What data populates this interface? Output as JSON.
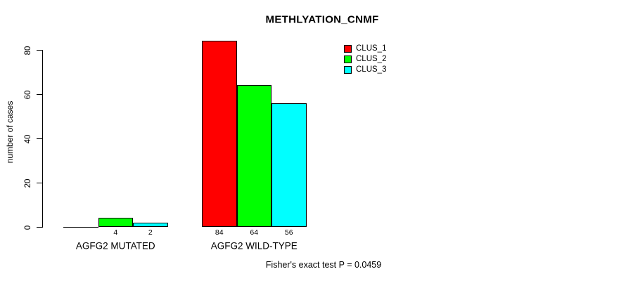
{
  "chart_data": {
    "type": "bar",
    "title": "METHLYATION_CNMF",
    "ylabel": "number of cases",
    "xlabel": "",
    "categories": [
      "AGFG2 MUTATED",
      "AGFG2 WILD-TYPE"
    ],
    "series": [
      {
        "name": "CLUS_1",
        "color": "#ff0000",
        "values": [
          0,
          84
        ]
      },
      {
        "name": "CLUS_2",
        "color": "#00ff00",
        "values": [
          4,
          64
        ]
      },
      {
        "name": "CLUS_3",
        "color": "#00ffff",
        "values": [
          2,
          56
        ]
      }
    ],
    "bar_value_labels": [
      [
        "",
        "4",
        "2"
      ],
      [
        "84",
        "64",
        "56"
      ]
    ],
    "yticks": [
      0,
      20,
      40,
      60,
      80
    ],
    "ylim": [
      0,
      84
    ],
    "grid": false,
    "legend_position": "top-right",
    "legend_entries": [
      "CLUS_1",
      "CLUS_2",
      "CLUS_3"
    ],
    "annotation": "Fisher's exact test P = 0.0459",
    "axis_color": "#000000",
    "background_color": "#ffffff"
  }
}
